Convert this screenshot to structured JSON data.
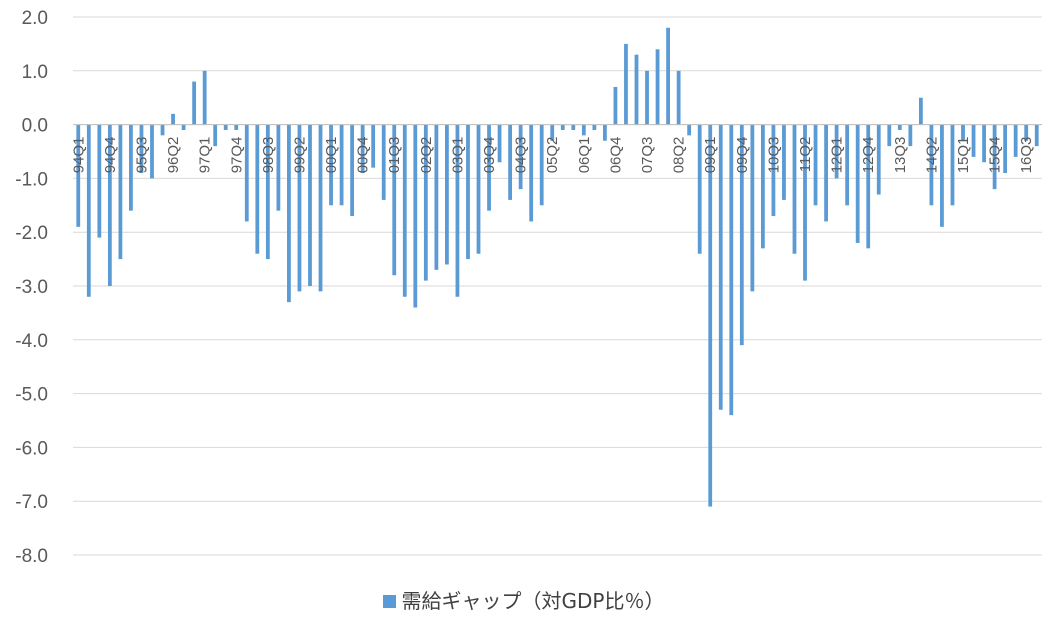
{
  "chart_data": {
    "type": "bar",
    "grid": true,
    "legend_position": "bottom",
    "ylim": [
      -8.0,
      2.0
    ],
    "y_ticks": [
      "2.0",
      "1.0",
      "0.0",
      "-1.0",
      "-2.0",
      "-3.0",
      "-4.0",
      "-5.0",
      "-6.0",
      "-7.0",
      "-8.0"
    ],
    "colors": {
      "bar": "#5b9bd5",
      "grid": "#d9d9d9",
      "axis": "#bfbfbf",
      "text": "#595959"
    },
    "categories": [
      "94Q1",
      "94Q2",
      "94Q3",
      "94Q4",
      "95Q1",
      "95Q2",
      "95Q3",
      "95Q4",
      "96Q1",
      "96Q2",
      "96Q3",
      "96Q4",
      "97Q1",
      "97Q2",
      "97Q3",
      "97Q4",
      "98Q1",
      "98Q2",
      "98Q3",
      "98Q4",
      "99Q1",
      "99Q2",
      "99Q3",
      "99Q4",
      "00Q1",
      "00Q2",
      "00Q3",
      "00Q4",
      "01Q1",
      "01Q2",
      "01Q3",
      "01Q4",
      "02Q1",
      "02Q2",
      "02Q3",
      "02Q4",
      "03Q1",
      "03Q2",
      "03Q3",
      "03Q4",
      "04Q1",
      "04Q2",
      "04Q3",
      "04Q4",
      "05Q1",
      "05Q2",
      "05Q3",
      "05Q4",
      "06Q1",
      "06Q2",
      "06Q3",
      "06Q4",
      "07Q1",
      "07Q2",
      "07Q3",
      "07Q4",
      "08Q1",
      "08Q2",
      "08Q3",
      "08Q4",
      "09Q1",
      "09Q2",
      "09Q3",
      "09Q4",
      "10Q1",
      "10Q2",
      "10Q3",
      "10Q4",
      "11Q1",
      "11Q2",
      "11Q3",
      "11Q4",
      "12Q1",
      "12Q2",
      "12Q3",
      "12Q4",
      "13Q1",
      "13Q2",
      "13Q3",
      "13Q4",
      "14Q1",
      "14Q2",
      "14Q3",
      "14Q4",
      "15Q1",
      "15Q2",
      "15Q3",
      "15Q4",
      "16Q1",
      "16Q2",
      "16Q3",
      "16Q4"
    ],
    "visible_category_labels": [
      "94Q1",
      "94Q4",
      "95Q3",
      "96Q2",
      "97Q1",
      "97Q4",
      "98Q3",
      "99Q2",
      "00Q1",
      "00Q4",
      "01Q3",
      "02Q2",
      "03Q1",
      "03Q4",
      "04Q3",
      "05Q2",
      "06Q1",
      "06Q4",
      "07Q3",
      "08Q2",
      "09Q1",
      "09Q4",
      "10Q3",
      "11Q2",
      "12Q1",
      "12Q4",
      "13Q3",
      "14Q2",
      "15Q1",
      "15Q4",
      "16Q3"
    ],
    "series": [
      {
        "name": "需給ギャップ（対GDP比％）",
        "values": [
          -1.9,
          -3.2,
          -2.1,
          -3.0,
          -2.5,
          -1.6,
          -0.9,
          -1.0,
          -0.2,
          0.2,
          -0.1,
          0.8,
          1.0,
          -0.4,
          -0.1,
          -0.1,
          -1.8,
          -2.4,
          -2.5,
          -1.6,
          -3.3,
          -3.1,
          -3.0,
          -3.1,
          -1.5,
          -1.5,
          -1.7,
          -0.9,
          -0.8,
          -1.4,
          -2.8,
          -3.2,
          -3.4,
          -2.9,
          -2.7,
          -2.6,
          -3.2,
          -2.5,
          -2.4,
          -1.6,
          -0.7,
          -1.4,
          -1.2,
          -1.8,
          -1.5,
          -0.3,
          -0.1,
          -0.1,
          -0.2,
          -0.1,
          -0.3,
          0.7,
          1.5,
          1.3,
          1.0,
          1.4,
          1.8,
          1.0,
          -0.2,
          -2.4,
          -7.1,
          -5.3,
          -5.4,
          -4.1,
          -3.1,
          -2.3,
          -1.7,
          -1.4,
          -2.4,
          -2.9,
          -1.5,
          -1.8,
          -1.0,
          -1.5,
          -2.2,
          -2.3,
          -1.3,
          -0.4,
          -0.1,
          -0.4,
          0.5,
          -1.5,
          -1.9,
          -1.5,
          -0.3,
          -0.6,
          -0.7,
          -1.2,
          -0.9,
          -0.6,
          -0.3,
          -0.4
        ]
      }
    ]
  }
}
